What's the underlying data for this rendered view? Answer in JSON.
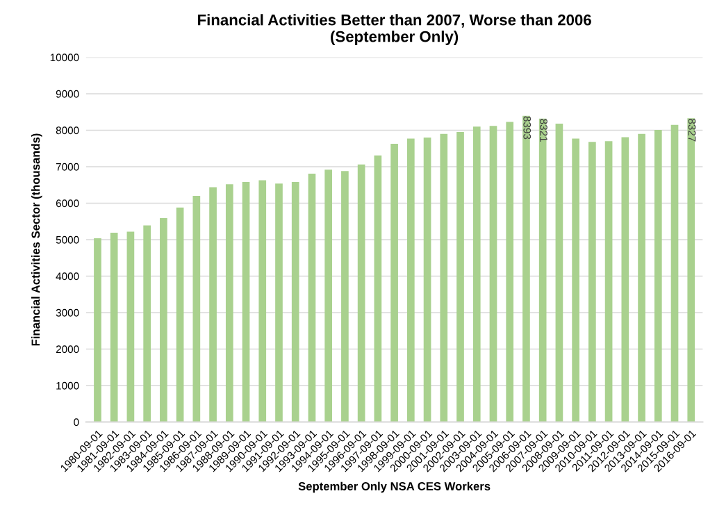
{
  "chart_data": {
    "type": "bar",
    "title": "Financial Activities Better than 2007, Worse than 2006\n(September Only)",
    "xlabel": "September Only NSA CES Workers",
    "ylabel": "Financial Activities Sector (thousands)",
    "categories": [
      "1980-09-01",
      "1981-09-01",
      "1982-09-01",
      "1983-09-01",
      "1984-09-01",
      "1985-09-01",
      "1986-09-01",
      "1987-09-01",
      "1988-09-01",
      "1989-09-01",
      "1990-09-01",
      "1991-09-01",
      "1992-09-01",
      "1993-09-01",
      "1994-09-01",
      "1995-09-01",
      "1996-09-01",
      "1997-09-01",
      "1998-09-01",
      "1999-09-01",
      "2000-09-01",
      "2001-09-01",
      "2002-09-01",
      "2003-09-01",
      "2004-09-01",
      "2005-09-01",
      "2006-09-01",
      "2007-09-01",
      "2008-09-01",
      "2009-09-01",
      "2010-09-01",
      "2011-09-01",
      "2012-09-01",
      "2013-09-01",
      "2014-09-01",
      "2015-09-01",
      "2016-09-01"
    ],
    "values": [
      5040,
      5190,
      5220,
      5390,
      5590,
      5880,
      6200,
      6440,
      6520,
      6580,
      6630,
      6540,
      6580,
      6810,
      6920,
      6880,
      7060,
      7310,
      7630,
      7770,
      7800,
      7900,
      7950,
      8100,
      8120,
      8230,
      8393,
      8321,
      8180,
      7770,
      7680,
      7700,
      7810,
      7900,
      8010,
      8150,
      8327
    ],
    "value_labels": [
      null,
      null,
      null,
      null,
      null,
      null,
      null,
      null,
      null,
      null,
      null,
      null,
      null,
      null,
      null,
      null,
      null,
      null,
      null,
      null,
      null,
      null,
      null,
      null,
      null,
      null,
      "8393",
      "8321",
      null,
      null,
      null,
      null,
      null,
      null,
      null,
      null,
      "8327"
    ],
    "color": "#a9d18e",
    "ylim": [
      0,
      10000
    ],
    "yticks": [
      0,
      1000,
      2000,
      3000,
      4000,
      5000,
      6000,
      7000,
      8000,
      9000,
      10000
    ],
    "grid": "y",
    "legend": false
  }
}
